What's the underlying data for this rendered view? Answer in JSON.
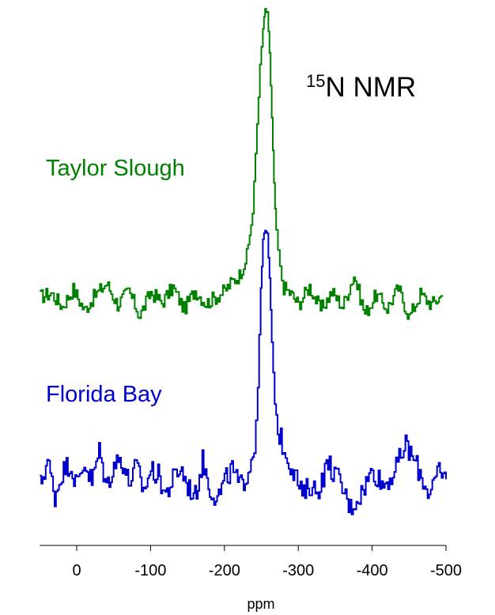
{
  "chart_data": {
    "type": "line",
    "title_sup": "15",
    "title_main": "N NMR",
    "xlabel": "ppm",
    "ylabel": "",
    "xlim": [
      50,
      -500
    ],
    "x_reversed": true,
    "xticks": [
      0,
      -100,
      -200,
      -300,
      -400,
      -500
    ],
    "xtick_labels": [
      "0",
      "-100",
      "-200",
      "-300",
      "-400",
      "-500"
    ],
    "grid": false,
    "series": [
      {
        "name": "Taylor Slough",
        "color": "#008000",
        "x": [
          50,
          35,
          20,
          5,
          -10,
          -25,
          -40,
          -55,
          -70,
          -85,
          -100,
          -115,
          -130,
          -145,
          -160,
          -175,
          -190,
          -200,
          -210,
          -220,
          -230,
          -238,
          -244,
          -248,
          -252,
          -255,
          -258,
          -261,
          -264,
          -267,
          -270,
          -275,
          -280,
          -290,
          -300,
          -315,
          -330,
          -345,
          -360,
          -375,
          -390,
          -405,
          -420,
          -435,
          -450,
          -465,
          -480,
          -495
        ],
        "values": [
          0.2,
          0.6,
          -0.8,
          1.0,
          -1.2,
          0.4,
          1.6,
          -0.6,
          0.8,
          -1.8,
          0.7,
          -0.4,
          1.2,
          -1.1,
          0.9,
          -0.5,
          0.3,
          0.8,
          1.8,
          2.5,
          4.5,
          9.0,
          18.5,
          24.5,
          28.5,
          30.5,
          30.0,
          26.0,
          19.0,
          12.0,
          7.0,
          3.0,
          1.2,
          0.5,
          -0.6,
          1.3,
          -1.2,
          0.7,
          -0.8,
          2.5,
          -1.6,
          0.4,
          -1.0,
          1.1,
          -1.9,
          0.5,
          -0.6,
          0.4
        ]
      },
      {
        "name": "Florida Bay",
        "color": "#0000cc",
        "x": [
          50,
          40,
          30,
          20,
          10,
          0,
          -10,
          -20,
          -30,
          -40,
          -50,
          -60,
          -70,
          -80,
          -90,
          -100,
          -110,
          -120,
          -130,
          -140,
          -150,
          -160,
          -170,
          -180,
          -190,
          -200,
          -210,
          -220,
          -230,
          -240,
          -245,
          -249,
          -252,
          -255,
          -258,
          -261,
          -264,
          -268,
          -272,
          -278,
          -285,
          -295,
          -305,
          -315,
          -325,
          -340,
          -355,
          -370,
          -385,
          -400,
          -415,
          -430,
          -445,
          -460,
          -475,
          -490,
          -500
        ],
        "values": [
          -0.8,
          1.8,
          -2.0,
          0.6,
          1.5,
          -0.8,
          1.6,
          -0.5,
          2.8,
          -1.0,
          1.4,
          2.0,
          -0.6,
          1.2,
          -1.4,
          0.8,
          0.2,
          -1.8,
          -0.2,
          1.0,
          -0.9,
          -2.0,
          1.8,
          -1.2,
          -2.2,
          -0.4,
          0.9,
          -1.0,
          0.3,
          3.0,
          9.5,
          20.0,
          25.0,
          26.0,
          25.5,
          21.0,
          14.0,
          8.0,
          5.0,
          3.5,
          2.0,
          0.5,
          -2.0,
          -0.8,
          -1.5,
          1.5,
          -0.4,
          -3.2,
          -1.6,
          0.8,
          -0.8,
          0.6,
          3.5,
          1.2,
          -1.5,
          0.4,
          -0.2
        ]
      }
    ]
  }
}
